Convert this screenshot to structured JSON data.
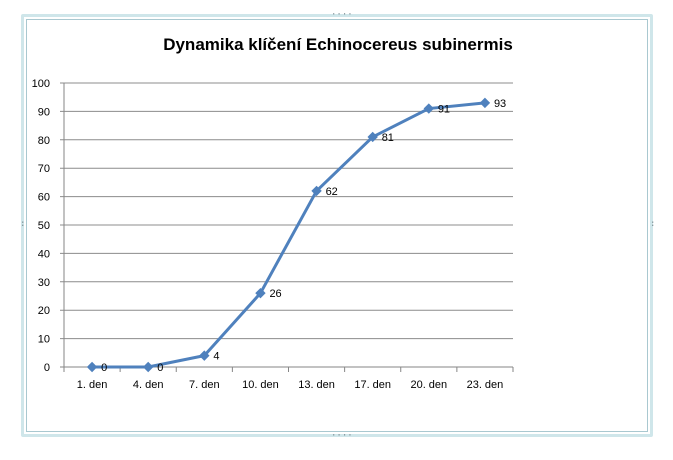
{
  "chart_data": {
    "type": "line",
    "title": "Dynamika klíčení  Echinocereus subinermis",
    "categories": [
      "1. den",
      "4. den",
      "7. den",
      "10. den",
      "13. den",
      "17. den",
      "20. den",
      "23. den"
    ],
    "series": [
      {
        "values": [
          0,
          0,
          4,
          26,
          62,
          81,
          91,
          93
        ],
        "color": "#4f81bd"
      }
    ],
    "data_labels": [
      "0",
      "0",
      "4",
      "26",
      "62",
      "81",
      "91",
      "93"
    ],
    "ylim": [
      0,
      100
    ],
    "yticks": [
      "0",
      "10",
      "20",
      "30",
      "40",
      "50",
      "60",
      "70",
      "80",
      "90",
      "100"
    ],
    "grid": true,
    "legend": "none",
    "marker": "diamond"
  }
}
